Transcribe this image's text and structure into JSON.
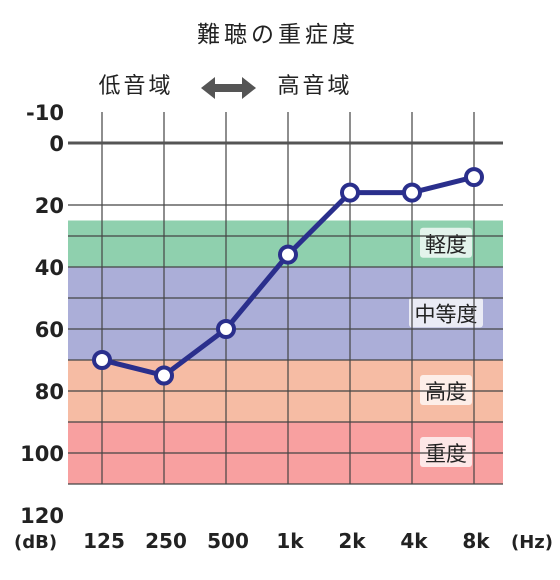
{
  "chart_data": {
    "type": "line",
    "title": "難聴の重症度",
    "x_categories": [
      "125",
      "250",
      "500",
      "1k",
      "2k",
      "4k",
      "8k"
    ],
    "x_unit": "(Hz)",
    "y_unit": "(dB)",
    "y_ticks": [
      -10,
      0,
      20,
      40,
      60,
      80,
      100,
      120
    ],
    "ylim": [
      -10,
      120
    ],
    "y_inverted": true,
    "range_labels": {
      "low": "低音域",
      "high": "高音域"
    },
    "series": [
      {
        "values": [
          70,
          75,
          60,
          36,
          16,
          16,
          11
        ],
        "color": "#2a2f8c"
      }
    ],
    "bands": [
      {
        "label": "軽度",
        "from": 25,
        "to": 40,
        "color": "#8fd0ae"
      },
      {
        "label": "中等度",
        "from": 40,
        "to": 70,
        "color": "#abaed8"
      },
      {
        "label": "高度",
        "from": 70,
        "to": 90,
        "color": "#f6bca4"
      },
      {
        "label": "重度",
        "from": 90,
        "to": 110,
        "color": "#f8a0a0"
      }
    ],
    "grid": true,
    "zero_line_color": "#555555",
    "grid_color": "#444444"
  }
}
